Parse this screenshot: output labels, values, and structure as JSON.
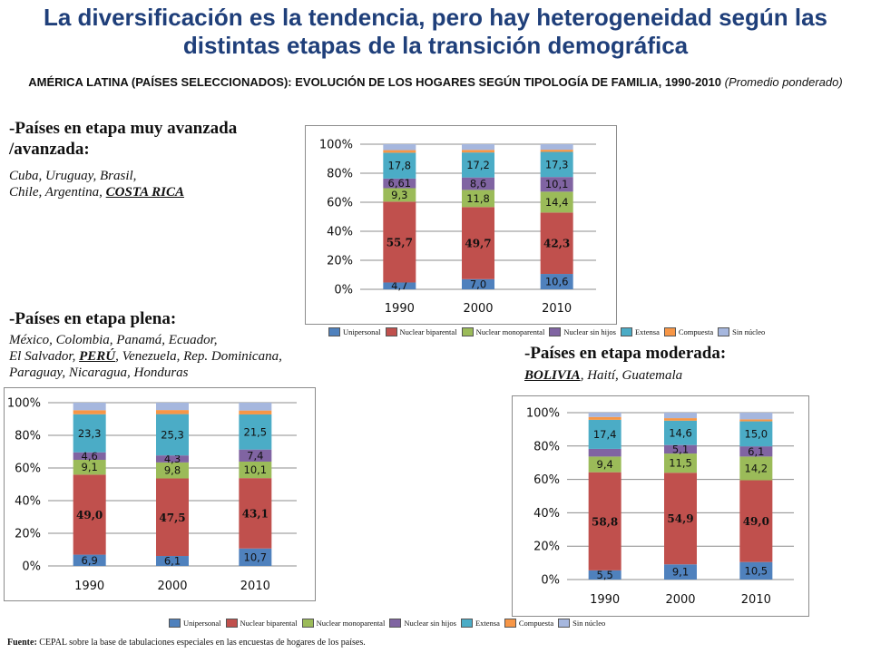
{
  "title": "La diversificación es la tendencia, pero hay heterogeneidad según las distintas etapas de la transición demográfica",
  "subtitle": "AMÉRICA LATINA (PAÍSES SELECCIONADOS): EVOLUCIÓN DE LOS HOGARES SEGÚN TIPOLOGÍA DE FAMILIA, 1990-2010",
  "subtitle_note": "(Promedio ponderado)",
  "groups": {
    "advanced": {
      "title_line1": "-Países en etapa muy avanzada",
      "title_line2": "/avanzada:",
      "countries_line1": "Cuba, Uruguay, Brasil,",
      "countries_line2_pre": "Chile, Argentina, ",
      "countries_line2_hl": "COSTA RICA"
    },
    "full": {
      "title": "-Países en etapa plena:",
      "countries_line1": "México, Colombia, Panamá, Ecuador,",
      "countries_line2_pre": "El Salvador, ",
      "countries_line2_hl": "PERÚ",
      "countries_line2_post": ", Venezuela, Rep. Dominicana,",
      "countries_line3": "Paraguay, Nicaragua, Honduras"
    },
    "moderate": {
      "title": "-Países en etapa moderada:",
      "countries_hl": "BOLIVIA",
      "countries_post": ", Haití, Guatemala"
    }
  },
  "legend": [
    {
      "label": "Unipersonal",
      "color": "#4f81bd"
    },
    {
      "label": "Nuclear biparental",
      "color": "#c0504d"
    },
    {
      "label": "Nuclear monoparental",
      "color": "#9bbb59"
    },
    {
      "label": "Nuclear sin hijos",
      "color": "#8064a2"
    },
    {
      "label": "Extensa",
      "color": "#4bacc6"
    },
    {
      "label": "Compuesta",
      "color": "#f79646"
    },
    {
      "label": "Sin núcleo",
      "color": "#a6b7de"
    }
  ],
  "chart_data": [
    {
      "type": "bar",
      "stacked": true,
      "panel": "advanced",
      "categories": [
        "1990",
        "2000",
        "2010"
      ],
      "ylim": [
        0,
        100
      ],
      "yticks": [
        "0%",
        "20%",
        "40%",
        "60%",
        "80%",
        "100%"
      ],
      "grid": true,
      "legend_position": "bottom",
      "series": [
        {
          "name": "Unipersonal",
          "values": [
            4.7,
            7.0,
            10.6
          ],
          "labels": [
            "4,7",
            "7,0",
            "10,6"
          ]
        },
        {
          "name": "Nuclear biparental",
          "values": [
            55.7,
            49.7,
            42.3
          ],
          "labels": [
            "55,7",
            "49,7",
            "42,3"
          ]
        },
        {
          "name": "Nuclear monoparental",
          "values": [
            9.3,
            11.8,
            14.4
          ],
          "labels": [
            "9,3",
            "11,8",
            "14,4"
          ]
        },
        {
          "name": "Nuclear sin hijos",
          "values": [
            6.61,
            8.6,
            10.1
          ],
          "labels": [
            "6,61",
            "8,6",
            "10,1"
          ]
        },
        {
          "name": "Extensa",
          "values": [
            17.8,
            17.2,
            17.3
          ],
          "labels": [
            "17,8",
            "17,2",
            "17,3"
          ]
        },
        {
          "name": "Compuesta",
          "values": [
            1.8,
            1.8,
            1.5
          ],
          "labels": [
            "",
            "",
            ""
          ]
        },
        {
          "name": "Sin núcleo",
          "values": [
            4.1,
            3.9,
            3.8
          ],
          "labels": [
            "",
            "",
            ""
          ]
        }
      ]
    },
    {
      "type": "bar",
      "stacked": true,
      "panel": "full",
      "categories": [
        "1990",
        "2000",
        "2010"
      ],
      "ylim": [
        0,
        100
      ],
      "yticks": [
        "0%",
        "20%",
        "40%",
        "60%",
        "80%",
        "100%"
      ],
      "grid": true,
      "legend_position": "none",
      "series": [
        {
          "name": "Unipersonal",
          "values": [
            6.9,
            6.1,
            10.7
          ],
          "labels": [
            "6,9",
            "6,1",
            "10,7"
          ]
        },
        {
          "name": "Nuclear biparental",
          "values": [
            49.0,
            47.5,
            43.1
          ],
          "labels": [
            "49,0",
            "47,5",
            "43,1"
          ]
        },
        {
          "name": "Nuclear monoparental",
          "values": [
            9.1,
            9.8,
            10.1
          ],
          "labels": [
            "9,1",
            "9,8",
            "10,1"
          ]
        },
        {
          "name": "Nuclear sin hijos",
          "values": [
            4.6,
            4.3,
            7.4
          ],
          "labels": [
            "4,6",
            "4,3",
            "7,4"
          ]
        },
        {
          "name": "Extensa",
          "values": [
            23.3,
            25.3,
            21.5
          ],
          "labels": [
            "23,3",
            "25,3",
            "21,5"
          ]
        },
        {
          "name": "Compuesta",
          "values": [
            2.5,
            2.5,
            2.4
          ],
          "labels": [
            "",
            "",
            ""
          ]
        },
        {
          "name": "Sin núcleo",
          "values": [
            4.6,
            4.5,
            4.8
          ],
          "labels": [
            "",
            "",
            ""
          ]
        }
      ]
    },
    {
      "type": "bar",
      "stacked": true,
      "panel": "moderate",
      "categories": [
        "1990",
        "2000",
        "2010"
      ],
      "ylim": [
        0,
        100
      ],
      "yticks": [
        "0%",
        "20%",
        "40%",
        "60%",
        "80%",
        "100%"
      ],
      "grid": true,
      "legend_position": "bottom",
      "series": [
        {
          "name": "Unipersonal",
          "values": [
            5.5,
            9.1,
            10.5
          ],
          "labels": [
            "5,5",
            "9,1",
            "10,5"
          ]
        },
        {
          "name": "Nuclear biparental",
          "values": [
            58.8,
            54.9,
            49.0
          ],
          "labels": [
            "58,8",
            "54,9",
            "49,0"
          ]
        },
        {
          "name": "Nuclear monoparental",
          "values": [
            9.4,
            11.5,
            14.2
          ],
          "labels": [
            "9,4",
            "11,5",
            "14,2"
          ]
        },
        {
          "name": "Nuclear sin hijos",
          "values": [
            4.6,
            5.1,
            6.1
          ],
          "labels": [
            "",
            "5,1",
            "6,1"
          ]
        },
        {
          "name": "Extensa",
          "values": [
            17.4,
            14.6,
            15.0
          ],
          "labels": [
            "17,4",
            "14,6",
            "15,0"
          ]
        },
        {
          "name": "Compuesta",
          "values": [
            1.7,
            1.5,
            1.2
          ],
          "labels": [
            "",
            "",
            ""
          ]
        },
        {
          "name": "Sin núcleo",
          "values": [
            2.6,
            3.3,
            4.0
          ],
          "labels": [
            "",
            "",
            ""
          ]
        }
      ]
    }
  ],
  "source": {
    "label": "Fuente:",
    "text": " CEPAL sobre la base de tabulaciones especiales en las encuestas de hogares de los países."
  }
}
